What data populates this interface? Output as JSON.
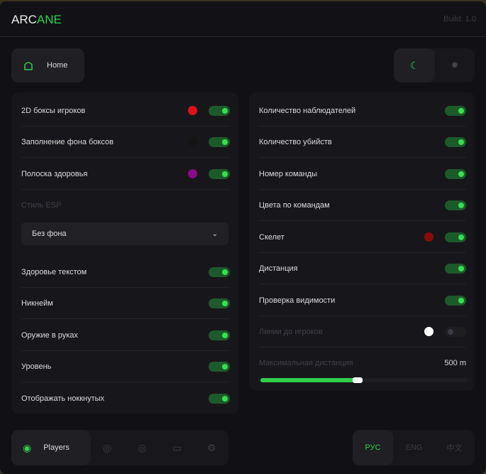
{
  "header": {
    "logo_a": "ARC",
    "logo_b": "ANE",
    "build": "Build: 1.0"
  },
  "nav": {
    "home": "Home",
    "players": "Players"
  },
  "left": {
    "rows": [
      {
        "label": "2D боксы игроков",
        "color": "#e0101a",
        "on": true
      },
      {
        "label": "Заполнение фона боксов",
        "color": "#141414",
        "on": true
      },
      {
        "label": "Полоска здоровья",
        "color": "#8a0a8a",
        "on": true
      }
    ],
    "esp_style_label": "Стиль ESP",
    "esp_style_value": "Без фона",
    "rows2": [
      {
        "label": "Здоровье текстом",
        "on": true
      },
      {
        "label": "Никнейм",
        "on": true
      },
      {
        "label": "Оружие в руках",
        "on": true
      },
      {
        "label": "Уровень",
        "on": true
      },
      {
        "label": "Отображать ноккнутых",
        "on": true
      }
    ]
  },
  "right": {
    "rows": [
      {
        "label": "Количество наблюдателей",
        "on": true
      },
      {
        "label": "Количество убийств",
        "on": true
      },
      {
        "label": "Номер команды",
        "on": true
      },
      {
        "label": "Цвета по командам",
        "on": true
      },
      {
        "label": "Скелет",
        "color": "#8a0a0a",
        "on": true
      },
      {
        "label": "Дистанция",
        "on": true
      },
      {
        "label": "Проверка видимости",
        "on": true
      },
      {
        "label": "Линии до игроков",
        "color": "#ffffff",
        "on": false
      }
    ],
    "max_distance_label": "Максимальная дистанция",
    "max_distance_value": "500 m",
    "max_distance_fraction": 0.47
  },
  "languages": [
    "РУС",
    "ENG",
    "中文"
  ],
  "active_language": "РУС",
  "accent": "#2fcf4a"
}
